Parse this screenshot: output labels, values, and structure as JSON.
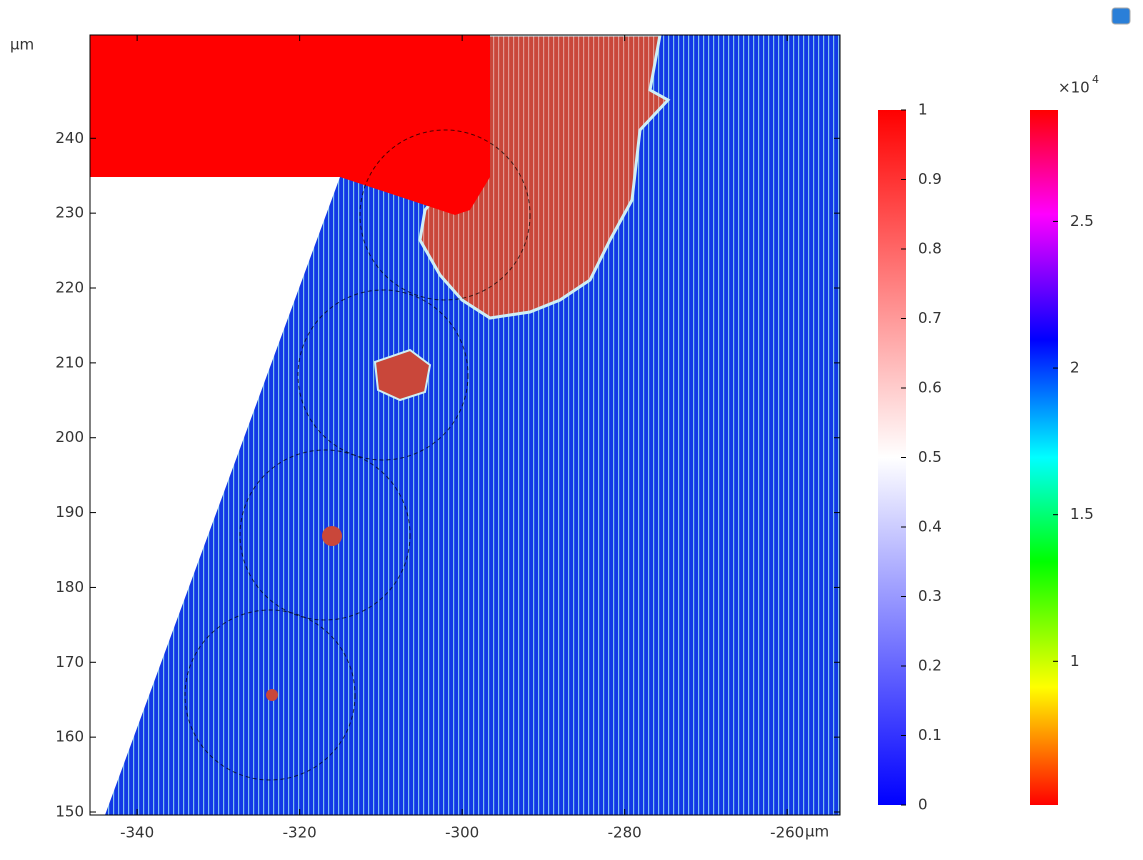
{
  "chart_data": {
    "type": "field",
    "x_label": "µm",
    "y_label": "µm",
    "xlim": [
      -345.8,
      -253.5
    ],
    "xticks": [
      -340,
      -320,
      -300,
      -280,
      -260
    ],
    "ylim": [
      149.6,
      253.8
    ],
    "yticks": [
      150,
      160,
      170,
      180,
      190,
      200,
      210,
      220,
      230,
      240
    ],
    "colorbars": [
      {
        "lim": [
          0,
          1
        ],
        "ticks": [
          0,
          0.1,
          0.2,
          0.3,
          0.4,
          0.5,
          0.6,
          0.7,
          0.8,
          0.9,
          1
        ]
      },
      {
        "multiplier": "×10",
        "exponent": "4",
        "lim": [
          5100,
          28800
        ],
        "ticks": [
          {
            "value": 10000,
            "label": "1"
          },
          {
            "value": 15000,
            "label": "1.5"
          },
          {
            "value": 20000,
            "label": "2"
          },
          {
            "value": 25000,
            "label": "2.5"
          }
        ]
      }
    ]
  }
}
